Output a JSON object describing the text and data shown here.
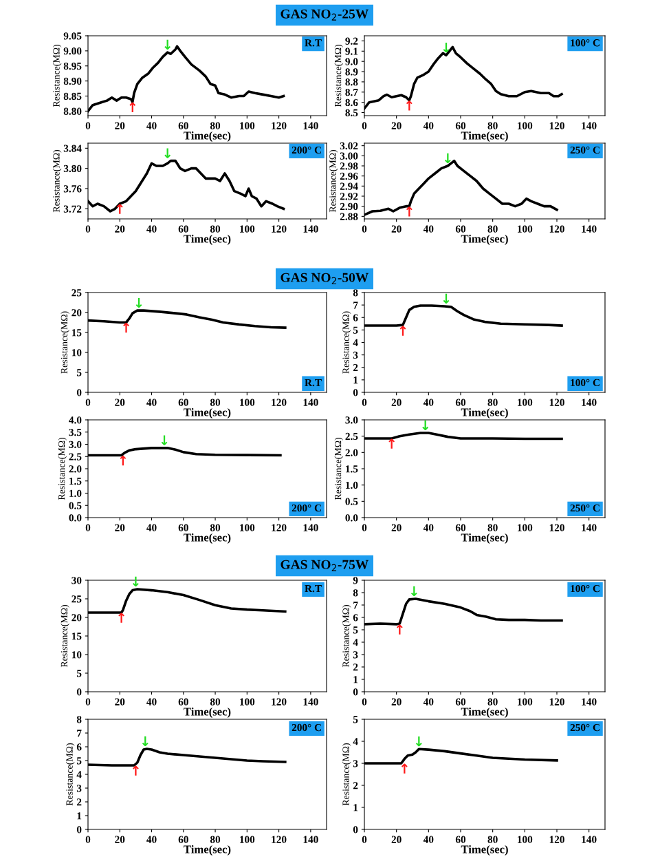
{
  "chart_data": [
    {
      "type": "line",
      "title": "GAS NO$_{2}$-25W",
      "xlabel": "Time(sec)",
      "ylabel": "Resistance(MΩ)",
      "xlim": [
        0,
        150
      ],
      "xticks": [
        0,
        20,
        40,
        60,
        80,
        100,
        120,
        140
      ],
      "ylim": [
        8.785,
        9.05
      ],
      "yticks": [
        {
          "value": 8.8,
          "label": "8.80"
        },
        {
          "value": 8.85,
          "label": "8.85"
        },
        {
          "value": 8.9,
          "label": "8.90"
        },
        {
          "value": 8.95,
          "label": "8.95"
        },
        {
          "value": 9.0,
          "label": "9.00"
        },
        {
          "value": 9.05,
          "label": "9.05"
        }
      ],
      "grid": false,
      "legend": false,
      "marker": "none",
      "line_style": "solid",
      "annotations": [
        "R.T",
        {
          "text": "↑",
          "x": 28,
          "y": 8.83
        },
        {
          "text": "↓",
          "x": 50,
          "y": 8.995
        }
      ],
      "series": [
        {
          "color": "#000000",
          "x": [
            0,
            3,
            6,
            9,
            12,
            15,
            18,
            21,
            24,
            27,
            28,
            29,
            31,
            34,
            38,
            41,
            44,
            47,
            50,
            52,
            55,
            56,
            58,
            61,
            65,
            70,
            74,
            77,
            80,
            82,
            86,
            90,
            95,
            98,
            101,
            105,
            110,
            115,
            120,
            123
          ],
          "values": [
            8.8,
            8.82,
            8.825,
            8.83,
            8.835,
            8.845,
            8.835,
            8.845,
            8.845,
            8.84,
            8.83,
            8.86,
            8.89,
            8.91,
            8.925,
            8.945,
            8.96,
            8.98,
            8.995,
            8.99,
            9.005,
            9.015,
            9.0,
            8.98,
            8.955,
            8.935,
            8.915,
            8.89,
            8.885,
            8.86,
            8.855,
            8.845,
            8.85,
            8.85,
            8.865,
            8.86,
            8.855,
            8.85,
            8.845,
            8.85
          ]
        }
      ]
    },
    {
      "type": "line",
      "xlabel": "Time(sec)",
      "ylabel": "Resistance(MΩ)",
      "xlim": [
        0,
        150
      ],
      "xticks": [
        0,
        20,
        40,
        60,
        80,
        100,
        120,
        140
      ],
      "ylim": [
        8.47,
        9.25
      ],
      "yticks": [
        8.5,
        8.6,
        8.7,
        8.8,
        8.9,
        {
          "value": 9.0,
          "label": "9.0"
        },
        9.1,
        9.2
      ],
      "grid": false,
      "legend": false,
      "marker": "none",
      "line_style": "solid",
      "annotations": [
        "100° C",
        {
          "text": "↑",
          "x": 28,
          "y": 8.62
        },
        {
          "text": "↓",
          "x": 51,
          "y": 9.06
        }
      ],
      "series": [
        {
          "color": "#000000",
          "x": [
            0,
            3,
            6,
            9,
            12,
            14,
            17,
            20,
            23,
            26,
            28,
            29,
            31,
            33,
            37,
            40,
            43,
            46,
            49,
            51,
            53,
            55,
            57,
            60,
            64,
            68,
            72,
            76,
            79,
            82,
            85,
            90,
            95,
            100,
            104,
            110,
            115,
            118,
            121,
            123
          ],
          "values": [
            8.54,
            8.6,
            8.61,
            8.62,
            8.66,
            8.675,
            8.65,
            8.66,
            8.67,
            8.65,
            8.62,
            8.66,
            8.78,
            8.84,
            8.87,
            8.9,
            8.97,
            9.03,
            9.08,
            9.06,
            9.1,
            9.14,
            9.08,
            9.04,
            8.98,
            8.93,
            8.88,
            8.82,
            8.78,
            8.71,
            8.68,
            8.66,
            8.66,
            8.7,
            8.71,
            8.69,
            8.69,
            8.66,
            8.66,
            8.68
          ]
        }
      ]
    },
    {
      "type": "line",
      "xlabel": "Time(sec)",
      "ylabel": "Resistance(MΩ)",
      "xlim": [
        0,
        150
      ],
      "xticks": [
        0,
        20,
        40,
        60,
        80,
        100,
        120,
        140
      ],
      "ylim": [
        3.7,
        3.85
      ],
      "yticks": [
        3.72,
        3.76,
        {
          "value": 3.8,
          "label": "3.80"
        },
        3.84
      ],
      "grid": false,
      "legend": false,
      "marker": "none",
      "line_style": "solid",
      "annotations": [
        "200° C",
        {
          "text": "↑",
          "x": 20,
          "y": 3.73
        },
        {
          "text": "↓",
          "x": 50,
          "y": 3.815
        }
      ],
      "series": [
        {
          "color": "#000000",
          "x": [
            0,
            3,
            6,
            10,
            14,
            17,
            20,
            24,
            27,
            30,
            34,
            37,
            40,
            43,
            47,
            50,
            52,
            55,
            58,
            61,
            65,
            68,
            71,
            74,
            77,
            80,
            83,
            86,
            89,
            92,
            96,
            99,
            101,
            103,
            106,
            109,
            112,
            116,
            119,
            123
          ],
          "values": [
            3.735,
            3.725,
            3.73,
            3.725,
            3.715,
            3.72,
            3.73,
            3.735,
            3.745,
            3.755,
            3.775,
            3.79,
            3.81,
            3.805,
            3.805,
            3.81,
            3.815,
            3.815,
            3.8,
            3.795,
            3.8,
            3.8,
            3.79,
            3.78,
            3.78,
            3.78,
            3.775,
            3.79,
            3.775,
            3.755,
            3.75,
            3.745,
            3.76,
            3.745,
            3.74,
            3.725,
            3.735,
            3.73,
            3.725,
            3.72
          ]
        }
      ]
    },
    {
      "type": "line",
      "xlabel": "Time(sec)",
      "ylabel": "Resistance(MΩ)",
      "xlim": [
        0,
        150
      ],
      "xticks": [
        0,
        20,
        40,
        60,
        80,
        100,
        120,
        140
      ],
      "ylim": [
        2.875,
        3.025
      ],
      "yticks": [
        2.88,
        {
          "value": 2.9,
          "label": "2.90"
        },
        2.92,
        2.94,
        2.96,
        2.98,
        {
          "value": 3.0,
          "label": "3.00"
        },
        3.02
      ],
      "grid": false,
      "legend": false,
      "marker": "none",
      "line_style": "solid",
      "annotations": [
        "250° C",
        {
          "text": "↑",
          "x": 28,
          "y": 2.9
        },
        {
          "text": "↓",
          "x": 52,
          "y": 2.98
        }
      ],
      "series": [
        {
          "color": "#000000",
          "x": [
            0,
            5,
            10,
            15,
            18,
            22,
            26,
            28,
            29,
            31,
            34,
            37,
            40,
            44,
            48,
            52,
            54,
            56,
            58,
            62,
            66,
            70,
            74,
            78,
            82,
            86,
            90,
            94,
            98,
            101,
            104,
            108,
            112,
            116,
            120
          ],
          "values": [
            2.883,
            2.89,
            2.891,
            2.895,
            2.89,
            2.897,
            2.9,
            2.9,
            2.91,
            2.925,
            2.935,
            2.945,
            2.955,
            2.965,
            2.975,
            2.98,
            2.985,
            2.99,
            2.98,
            2.97,
            2.96,
            2.95,
            2.935,
            2.925,
            2.915,
            2.905,
            2.905,
            2.9,
            2.905,
            2.915,
            2.91,
            2.905,
            2.9,
            2.9,
            2.893
          ]
        }
      ]
    },
    {
      "type": "line",
      "title": "GAS NO$_{2}$-50W",
      "xlabel": "Time(sec)",
      "ylabel": "Resistance(MΩ)",
      "xlim": [
        0,
        150
      ],
      "xticks": [
        0,
        20,
        40,
        60,
        80,
        100,
        120,
        140
      ],
      "ylim": [
        0,
        25
      ],
      "yticks": [
        0,
        5,
        10,
        15,
        20,
        25
      ],
      "grid": false,
      "legend": false,
      "marker": "none",
      "line_style": "solid",
      "annotations": [
        "R.T",
        {
          "text": "↑",
          "x": 24,
          "y": 17.5
        },
        {
          "text": "↓",
          "x": 32,
          "y": 20.5
        }
      ],
      "series": [
        {
          "color": "#000000",
          "x": [
            0,
            10,
            20,
            24,
            26,
            28,
            31,
            35,
            45,
            55,
            62,
            70,
            78,
            85,
            95,
            105,
            115,
            124
          ],
          "values": [
            18,
            17.8,
            17.5,
            17.5,
            18.5,
            19.8,
            20.5,
            20.5,
            20.2,
            19.8,
            19.5,
            18.8,
            18.2,
            17.5,
            17,
            16.6,
            16.3,
            16.2
          ]
        }
      ]
    },
    {
      "type": "line",
      "xlabel": "Time(sec)",
      "ylabel": "Resistance(MΩ)",
      "xlim": [
        0,
        150
      ],
      "xticks": [
        0,
        20,
        40,
        60,
        80,
        100,
        120,
        140
      ],
      "ylim": [
        0,
        8
      ],
      "yticks": [
        0,
        1,
        2,
        3,
        4,
        5,
        6,
        7,
        8
      ],
      "grid": false,
      "legend": false,
      "marker": "none",
      "line_style": "solid",
      "annotations": [
        "100° C",
        {
          "text": "↑",
          "x": 24,
          "y": 5.35
        },
        {
          "text": "↓",
          "x": 51,
          "y": 6.9
        }
      ],
      "series": [
        {
          "color": "#000000",
          "x": [
            0,
            10,
            20,
            24,
            26,
            28,
            31,
            35,
            42,
            50,
            54,
            58,
            62,
            68,
            75,
            85,
            100,
            115,
            123
          ],
          "values": [
            5.35,
            5.35,
            5.35,
            5.4,
            6.0,
            6.6,
            6.85,
            6.95,
            6.95,
            6.9,
            6.85,
            6.5,
            6.2,
            5.85,
            5.65,
            5.5,
            5.45,
            5.4,
            5.35
          ]
        }
      ]
    },
    {
      "type": "line",
      "xlabel": "Time(sec)",
      "ylabel": "Resistance(MΩ)",
      "xlim": [
        0,
        150
      ],
      "xticks": [
        0,
        20,
        40,
        60,
        80,
        100,
        120,
        140
      ],
      "ylim": [
        0,
        4
      ],
      "yticks": [
        {
          "value": 0,
          "label": "0.0"
        },
        0.5,
        {
          "value": 1,
          "label": "1.0"
        },
        1.5,
        {
          "value": 2,
          "label": "2.0"
        },
        2.5,
        {
          "value": 3,
          "label": "3.0"
        },
        3.5,
        {
          "value": 4,
          "label": "4.0"
        }
      ],
      "grid": false,
      "legend": false,
      "marker": "none",
      "line_style": "solid",
      "annotations": [
        "200° C",
        {
          "text": "↑",
          "x": 22,
          "y": 2.55
        },
        {
          "text": "↓",
          "x": 48,
          "y": 2.85
        }
      ],
      "series": [
        {
          "color": "#000000",
          "x": [
            0,
            10,
            21,
            23,
            26,
            30,
            40,
            50,
            55,
            60,
            68,
            80,
            100,
            121
          ],
          "values": [
            2.55,
            2.55,
            2.55,
            2.65,
            2.75,
            2.8,
            2.85,
            2.85,
            2.78,
            2.68,
            2.6,
            2.57,
            2.56,
            2.55
          ]
        }
      ]
    },
    {
      "type": "line",
      "xlabel": "Time(sec)",
      "ylabel": "Resistance(MΩ)",
      "xlim": [
        0,
        150
      ],
      "xticks": [
        0,
        20,
        40,
        60,
        80,
        100,
        120,
        140
      ],
      "ylim": [
        0,
        3
      ],
      "yticks": [
        {
          "value": 0,
          "label": "0.0"
        },
        0.5,
        {
          "value": 1,
          "label": "1.0"
        },
        1.5,
        {
          "value": 2,
          "label": "2.0"
        },
        2.5,
        {
          "value": 3,
          "label": "3.0"
        }
      ],
      "grid": false,
      "legend": false,
      "marker": "none",
      "line_style": "solid",
      "annotations": [
        "250° C",
        {
          "text": "↑",
          "x": 17,
          "y": 2.43
        },
        {
          "text": "↓",
          "x": 38,
          "y": 2.6
        }
      ],
      "series": [
        {
          "color": "#000000",
          "x": [
            0,
            10,
            17,
            22,
            28,
            35,
            40,
            45,
            52,
            60,
            80,
            100,
            123
          ],
          "values": [
            2.43,
            2.43,
            2.43,
            2.5,
            2.55,
            2.6,
            2.6,
            2.55,
            2.48,
            2.43,
            2.43,
            2.42,
            2.42
          ]
        }
      ]
    },
    {
      "type": "line",
      "title": "GAS NO$_{2}$-75W",
      "xlabel": "Time(sec)",
      "ylabel": "Resistance(MΩ)",
      "xlim": [
        0,
        150
      ],
      "xticks": [
        0,
        20,
        40,
        60,
        80,
        100,
        120,
        140
      ],
      "ylim": [
        0,
        30
      ],
      "yticks": [
        0,
        5,
        10,
        15,
        20,
        25,
        30
      ],
      "grid": false,
      "legend": false,
      "marker": "none",
      "line_style": "solid",
      "annotations": [
        "R.T",
        {
          "text": "↑",
          "x": 21,
          "y": 21.3
        },
        {
          "text": "↓",
          "x": 30,
          "y": 27.6
        }
      ],
      "series": [
        {
          "color": "#000000",
          "x": [
            0,
            10,
            21,
            22,
            24,
            26,
            28,
            31,
            40,
            50,
            60,
            70,
            80,
            90,
            100,
            110,
            124
          ],
          "values": [
            21.3,
            21.3,
            21.3,
            22,
            24.5,
            26.3,
            27.3,
            27.6,
            27.3,
            26.8,
            26.0,
            24.7,
            23.3,
            22.4,
            22.1,
            21.9,
            21.6
          ]
        }
      ]
    },
    {
      "type": "line",
      "xlabel": "Time(sec)",
      "ylabel": "Resistance(MΩ)",
      "xlim": [
        0,
        150
      ],
      "xticks": [
        0,
        20,
        40,
        60,
        80,
        100,
        120,
        140
      ],
      "ylim": [
        0,
        9
      ],
      "yticks": [
        0,
        1,
        2,
        3,
        4,
        5,
        6,
        7,
        8,
        9
      ],
      "grid": false,
      "legend": false,
      "marker": "none",
      "line_style": "solid",
      "annotations": [
        "100° C",
        {
          "text": "↑",
          "x": 22,
          "y": 5.45
        },
        {
          "text": "↓",
          "x": 31,
          "y": 7.5
        }
      ],
      "series": [
        {
          "color": "#000000",
          "x": [
            0,
            10,
            20,
            22,
            24,
            26,
            28,
            32,
            40,
            50,
            60,
            66,
            70,
            76,
            82,
            90,
            100,
            110,
            123
          ],
          "values": [
            5.45,
            5.5,
            5.45,
            5.5,
            6.3,
            7.1,
            7.45,
            7.5,
            7.3,
            7.1,
            6.8,
            6.5,
            6.2,
            6.05,
            5.85,
            5.8,
            5.8,
            5.75,
            5.75
          ]
        }
      ]
    },
    {
      "type": "line",
      "xlabel": "Time(sec)",
      "ylabel": "Resistance(MΩ)",
      "xlim": [
        0,
        150
      ],
      "xticks": [
        0,
        20,
        40,
        60,
        80,
        100,
        120,
        140
      ],
      "ylim": [
        0,
        8
      ],
      "yticks": [
        0,
        1,
        2,
        3,
        4,
        5,
        6,
        7,
        8
      ],
      "grid": false,
      "legend": false,
      "marker": "none",
      "line_style": "solid",
      "annotations": [
        "200° C",
        {
          "text": "↑",
          "x": 30,
          "y": 4.65
        },
        {
          "text": "↓",
          "x": 36,
          "y": 5.85
        }
      ],
      "series": [
        {
          "color": "#000000",
          "x": [
            0,
            15,
            29,
            31,
            33,
            35,
            37,
            40,
            45,
            50,
            60,
            80,
            100,
            110,
            124
          ],
          "values": [
            4.7,
            4.65,
            4.65,
            4.85,
            5.4,
            5.8,
            5.85,
            5.8,
            5.6,
            5.5,
            5.4,
            5.2,
            5.0,
            4.95,
            4.9
          ]
        }
      ]
    },
    {
      "type": "line",
      "xlabel": "Time(sec)",
      "ylabel": "Resistance(MΩ)",
      "xlim": [
        0,
        150
      ],
      "xticks": [
        0,
        20,
        40,
        60,
        80,
        100,
        120,
        140
      ],
      "ylim": [
        0,
        5
      ],
      "yticks": [
        0,
        1,
        2,
        3,
        4,
        5
      ],
      "grid": false,
      "legend": false,
      "marker": "none",
      "line_style": "solid",
      "annotations": [
        "250° C",
        {
          "text": "↑",
          "x": 25,
          "y": 3.0
        },
        {
          "text": "↓",
          "x": 34,
          "y": 3.65
        }
      ],
      "series": [
        {
          "color": "#000000",
          "x": [
            0,
            10,
            23,
            25,
            27,
            30,
            32,
            34,
            40,
            50,
            60,
            70,
            80,
            100,
            120
          ],
          "values": [
            3.0,
            3.0,
            3.0,
            3.2,
            3.35,
            3.4,
            3.5,
            3.65,
            3.62,
            3.55,
            3.45,
            3.35,
            3.25,
            3.17,
            3.13
          ]
        }
      ]
    }
  ]
}
